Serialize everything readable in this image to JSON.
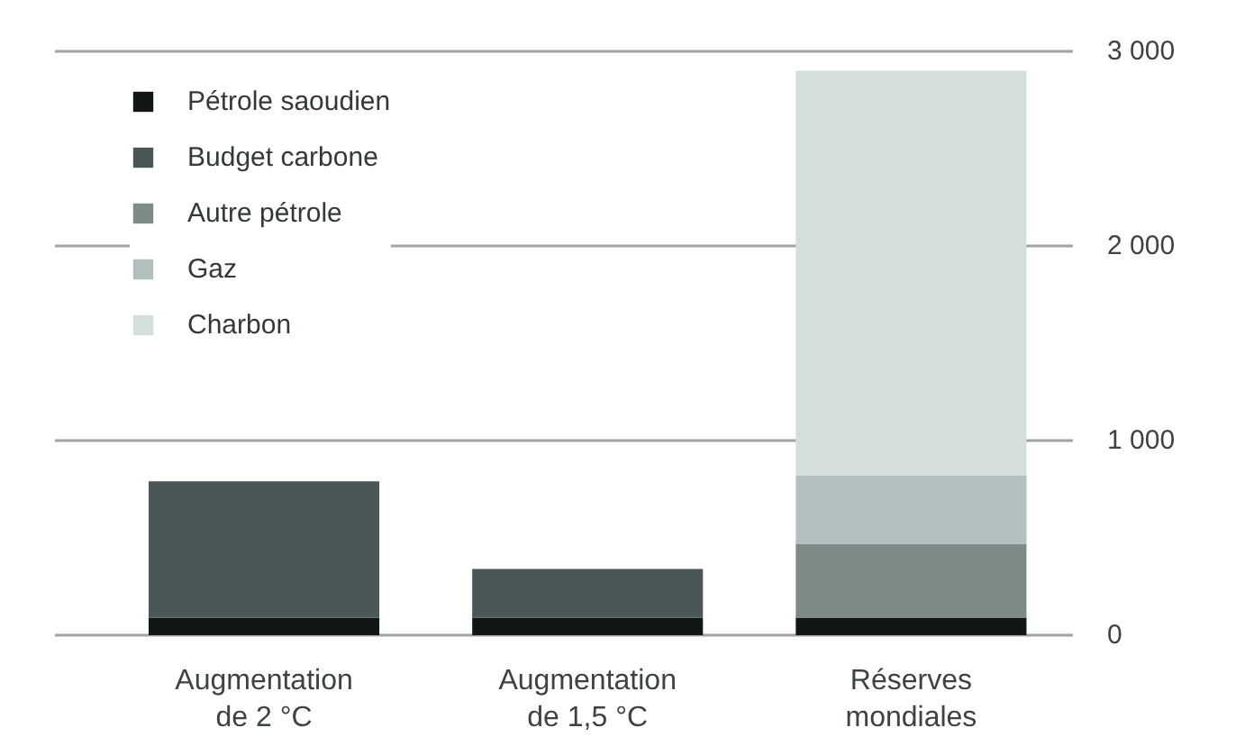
{
  "chart_data": {
    "type": "bar",
    "stacked": true,
    "categories": [
      "Augmentation de 2 °C",
      "Augmentation de 1,5 °C",
      "Réserves mondiales"
    ],
    "series": [
      {
        "name": "Pétrole saoudien",
        "color": "#121616",
        "values": [
          90,
          90,
          90
        ]
      },
      {
        "name": "Budget carbone",
        "color": "#4a5758",
        "values": [
          700,
          250,
          null
        ]
      },
      {
        "name": "Autre pétrole",
        "color": "#7d8a88",
        "values": [
          null,
          null,
          380
        ]
      },
      {
        "name": "Gaz",
        "color": "#b1bfbe",
        "values": [
          null,
          null,
          350
        ]
      },
      {
        "name": "Charbon",
        "color": "#d4dfdd",
        "values": [
          null,
          null,
          2080
        ]
      }
    ],
    "ylim": [
      0,
      3000
    ],
    "yticks": [
      0,
      {
        "value": 1000,
        "label": "1 000"
      },
      {
        "value": 2000,
        "label": "2 000"
      },
      {
        "value": 3000,
        "label": "3 000"
      }
    ],
    "grid": "y",
    "legend": "top left"
  }
}
